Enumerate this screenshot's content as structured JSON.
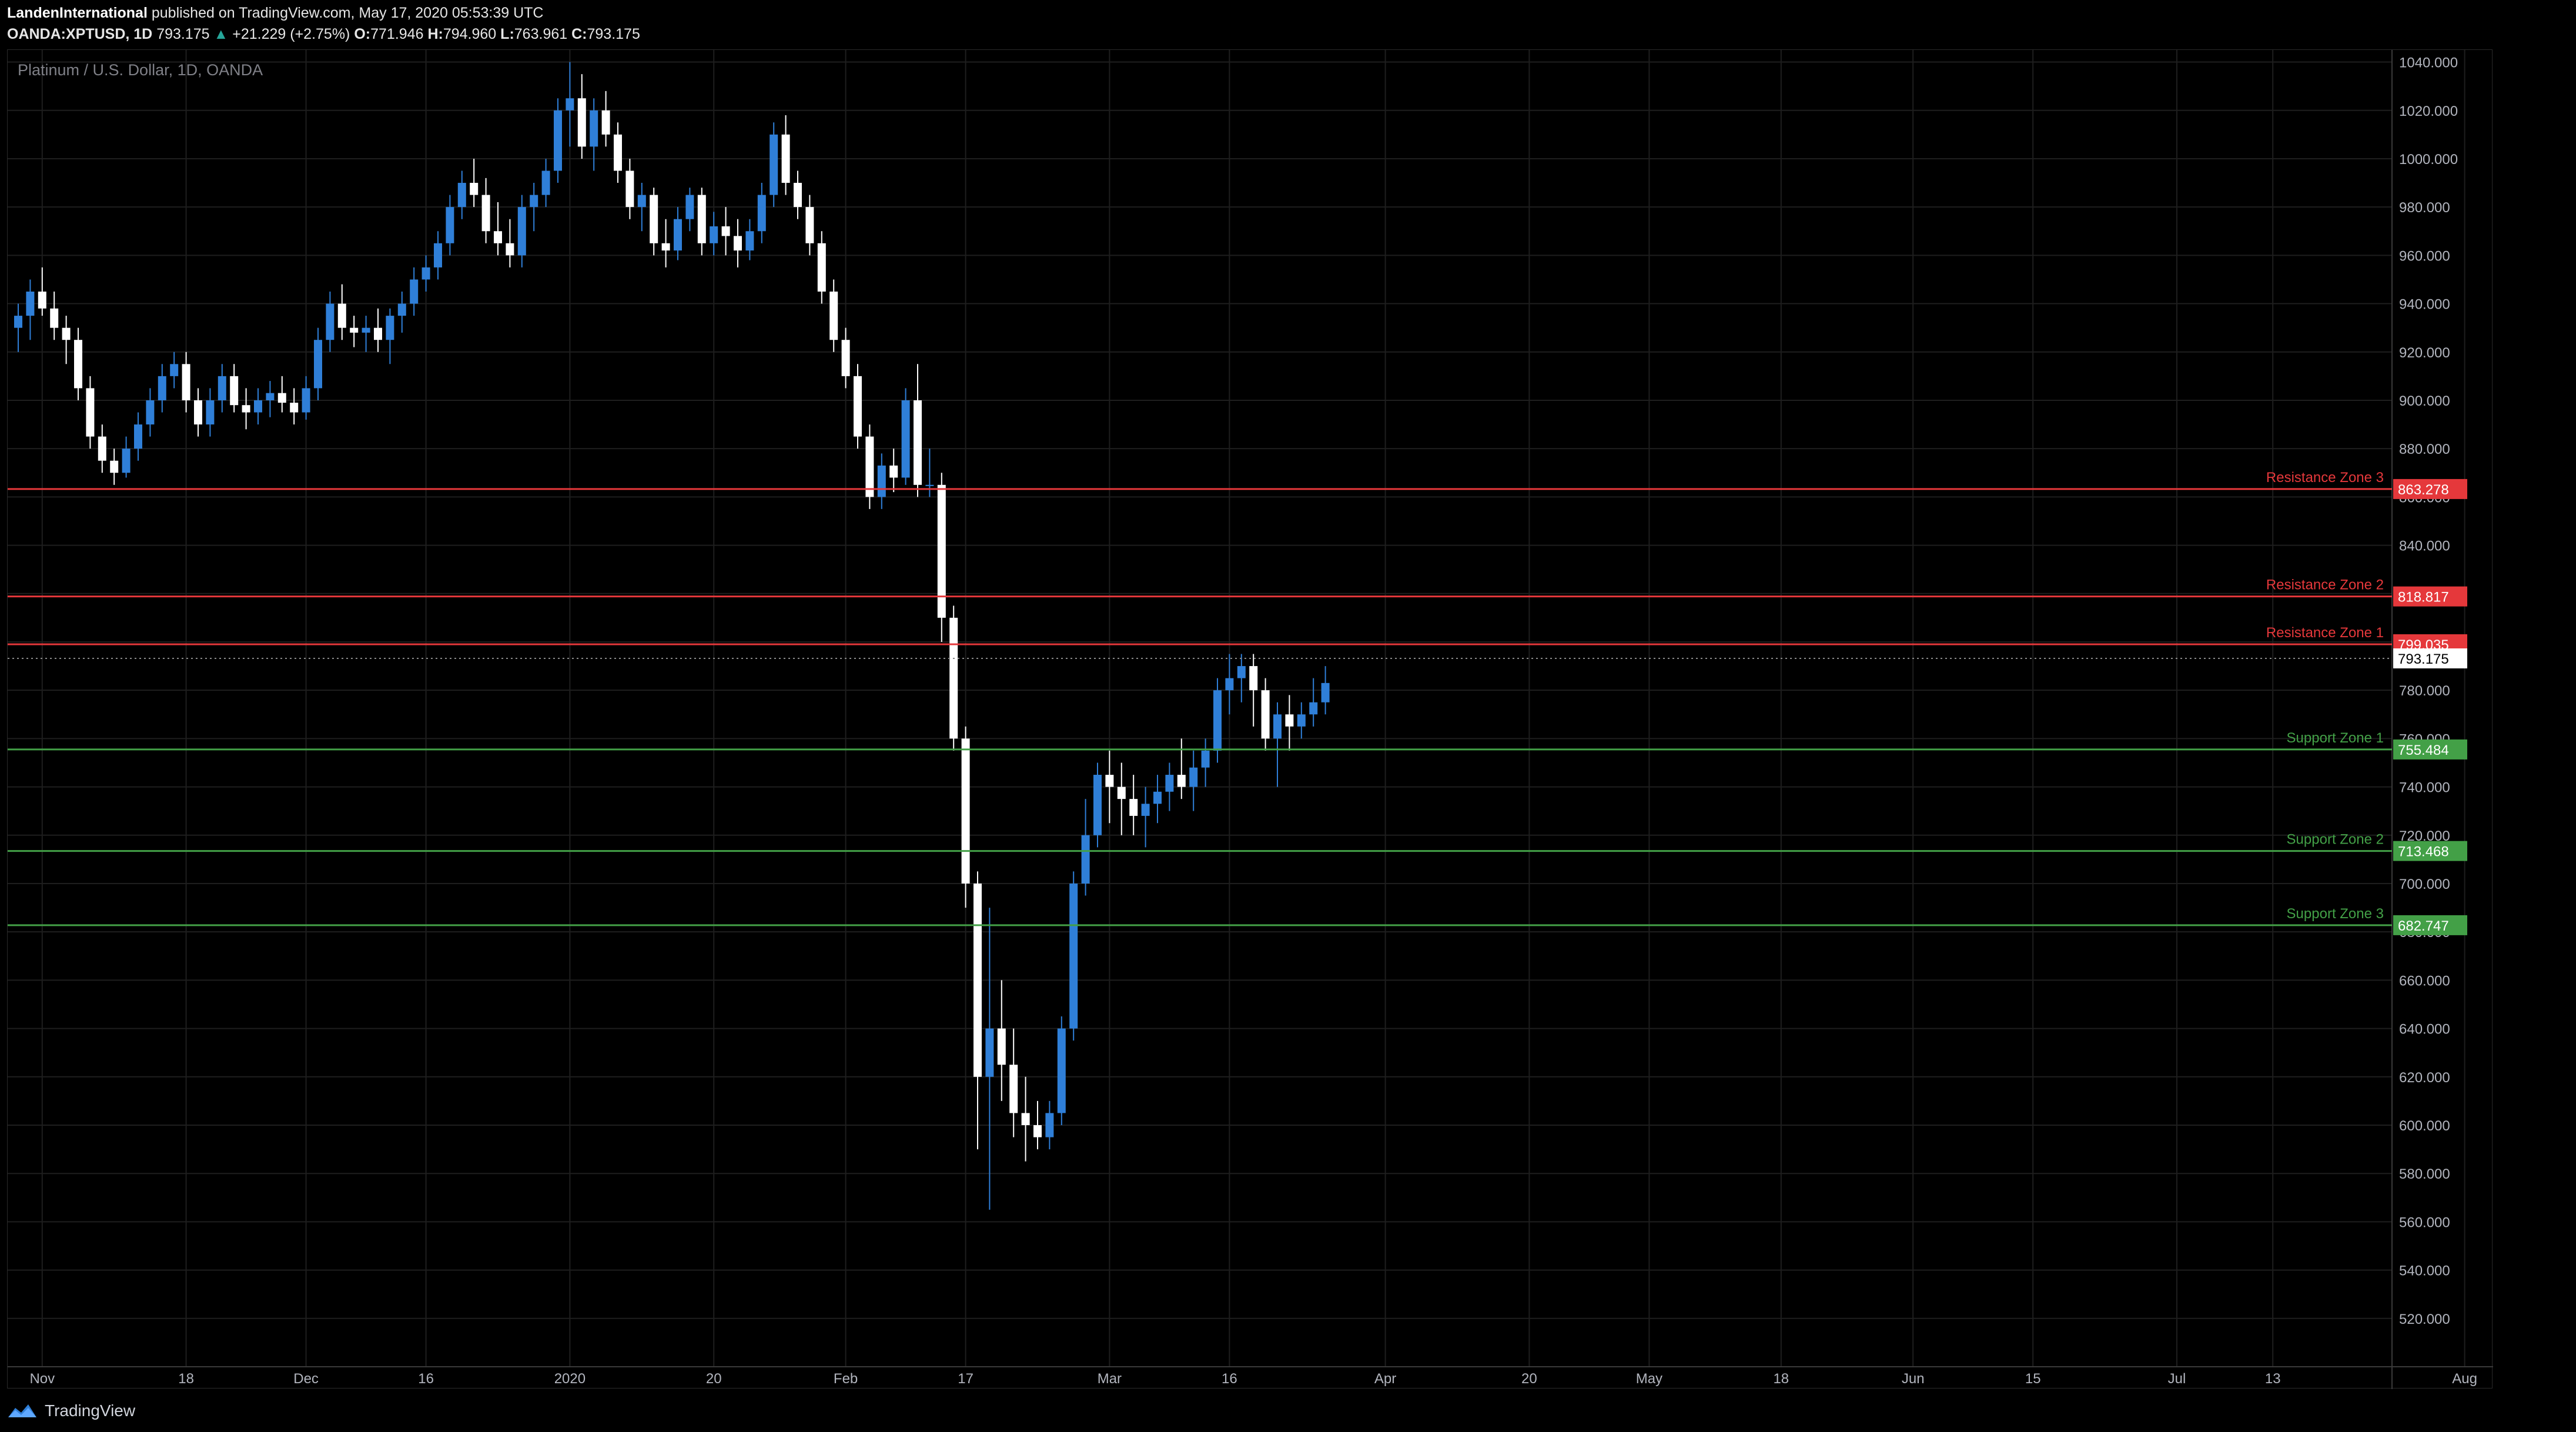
{
  "header": {
    "author": "LandenInternational",
    "published": "published on TradingView.com, May 17, 2020 05:53:39 UTC"
  },
  "symbol_line": {
    "ticker": "OANDA:XPTUSD, 1D",
    "last": "793.175",
    "arrow": "▲",
    "change": "+21.229 (+2.75%)",
    "o_label": "O:",
    "o": "771.946",
    "h_label": "H:",
    "h": "794.960",
    "l_label": "L:",
    "l": "763.961",
    "c_label": "C:",
    "c": "793.175"
  },
  "overlay_title": "Platinum / U.S. Dollar, 1D, OANDA",
  "footer": {
    "brand": "TradingView"
  },
  "colors": {
    "up": "#2f7fd8",
    "down": "#ffffff",
    "resistance": "#e5383b",
    "support": "#43a047",
    "grid": "#1e1e1e"
  },
  "chart_data": {
    "type": "candlestick",
    "ylim": [
      500,
      1045
    ],
    "y_ticks": [
      "1040.000",
      "1020.000",
      "1000.000",
      "980.000",
      "960.000",
      "940.000",
      "920.000",
      "900.000",
      "880.000",
      "860.000",
      "840.000",
      "820.000",
      "800.000",
      "780.000",
      "760.000",
      "740.000",
      "720.000",
      "700.000",
      "680.000",
      "660.000",
      "640.000",
      "620.000",
      "600.000",
      "580.000",
      "560.000",
      "540.000",
      "520.000"
    ],
    "y_tick_values": [
      1040,
      1020,
      1000,
      980,
      960,
      940,
      920,
      900,
      880,
      860,
      840,
      820,
      800,
      780,
      760,
      740,
      720,
      700,
      680,
      660,
      640,
      620,
      600,
      580,
      560,
      540,
      520
    ],
    "x_ticks": [
      {
        "label": "Nov",
        "i": 2
      },
      {
        "label": "18",
        "i": 14
      },
      {
        "label": "Dec",
        "i": 24
      },
      {
        "label": "16",
        "i": 34
      },
      {
        "label": "2020",
        "i": 46
      },
      {
        "label": "20",
        "i": 58
      },
      {
        "label": "Feb",
        "i": 69
      },
      {
        "label": "17",
        "i": 79
      },
      {
        "label": "Mar",
        "i": 91
      },
      {
        "label": "16",
        "i": 101
      },
      {
        "label": "Apr",
        "i": 114
      },
      {
        "label": "20",
        "i": 126
      },
      {
        "label": "May",
        "i": 136
      },
      {
        "label": "18",
        "i": 147
      },
      {
        "label": "Jun",
        "i": 158
      },
      {
        "label": "15",
        "i": 168
      },
      {
        "label": "Jul",
        "i": 180
      },
      {
        "label": "13",
        "i": 188
      },
      {
        "label": "Aug",
        "i": 204
      }
    ],
    "levels": [
      {
        "name": "Resistance Zone 3",
        "value": 863.278,
        "label": "863.278",
        "kind": "resistance"
      },
      {
        "name": "Resistance Zone 2",
        "value": 818.817,
        "label": "818.817",
        "kind": "resistance"
      },
      {
        "name": "Resistance Zone 1",
        "value": 799.035,
        "label": "799.035",
        "kind": "resistance"
      },
      {
        "name": "Support Zone 1",
        "value": 755.484,
        "label": "755.484",
        "kind": "support"
      },
      {
        "name": "Support Zone 2",
        "value": 713.468,
        "label": "713.468",
        "kind": "support"
      },
      {
        "name": "Support Zone 3",
        "value": 682.747,
        "label": "682.747",
        "kind": "support"
      }
    ],
    "last_price": {
      "value": 793.175,
      "label": "793.175"
    },
    "candles": [
      [
        930,
        940,
        920,
        935
      ],
      [
        935,
        950,
        925,
        945
      ],
      [
        945,
        955,
        935,
        938
      ],
      [
        938,
        945,
        925,
        930
      ],
      [
        930,
        935,
        915,
        925
      ],
      [
        925,
        930,
        900,
        905
      ],
      [
        905,
        910,
        880,
        885
      ],
      [
        885,
        890,
        870,
        875
      ],
      [
        875,
        880,
        865,
        870
      ],
      [
        870,
        885,
        868,
        880
      ],
      [
        880,
        895,
        875,
        890
      ],
      [
        890,
        905,
        885,
        900
      ],
      [
        900,
        915,
        895,
        910
      ],
      [
        910,
        920,
        905,
        915
      ],
      [
        915,
        920,
        895,
        900
      ],
      [
        900,
        905,
        885,
        890
      ],
      [
        890,
        905,
        885,
        900
      ],
      [
        900,
        915,
        895,
        910
      ],
      [
        910,
        915,
        895,
        898
      ],
      [
        898,
        905,
        888,
        895
      ],
      [
        895,
        905,
        890,
        900
      ],
      [
        900,
        908,
        893,
        903
      ],
      [
        903,
        910,
        895,
        899
      ],
      [
        899,
        905,
        890,
        895
      ],
      [
        895,
        910,
        892,
        905
      ],
      [
        905,
        930,
        900,
        925
      ],
      [
        925,
        945,
        920,
        940
      ],
      [
        940,
        948,
        925,
        930
      ],
      [
        930,
        935,
        922,
        928
      ],
      [
        928,
        935,
        920,
        930
      ],
      [
        930,
        938,
        920,
        925
      ],
      [
        925,
        938,
        915,
        935
      ],
      [
        935,
        945,
        928,
        940
      ],
      [
        940,
        955,
        935,
        950
      ],
      [
        950,
        960,
        945,
        955
      ],
      [
        955,
        970,
        950,
        965
      ],
      [
        965,
        985,
        960,
        980
      ],
      [
        980,
        995,
        975,
        990
      ],
      [
        990,
        1000,
        980,
        985
      ],
      [
        985,
        992,
        965,
        970
      ],
      [
        970,
        982,
        960,
        965
      ],
      [
        965,
        975,
        955,
        960
      ],
      [
        960,
        985,
        955,
        980
      ],
      [
        980,
        990,
        970,
        985
      ],
      [
        985,
        1000,
        980,
        995
      ],
      [
        995,
        1025,
        990,
        1020
      ],
      [
        1020,
        1040,
        1005,
        1025
      ],
      [
        1025,
        1035,
        1000,
        1005
      ],
      [
        1005,
        1025,
        995,
        1020
      ],
      [
        1020,
        1028,
        1005,
        1010
      ],
      [
        1010,
        1015,
        990,
        995
      ],
      [
        995,
        1000,
        975,
        980
      ],
      [
        980,
        990,
        970,
        985
      ],
      [
        985,
        988,
        960,
        965
      ],
      [
        965,
        975,
        955,
        962
      ],
      [
        962,
        980,
        958,
        975
      ],
      [
        975,
        988,
        970,
        985
      ],
      [
        985,
        988,
        960,
        965
      ],
      [
        965,
        978,
        960,
        972
      ],
      [
        972,
        980,
        960,
        968
      ],
      [
        968,
        975,
        955,
        962
      ],
      [
        962,
        975,
        958,
        970
      ],
      [
        970,
        990,
        965,
        985
      ],
      [
        985,
        1015,
        980,
        1010
      ],
      [
        1010,
        1018,
        985,
        990
      ],
      [
        990,
        995,
        975,
        980
      ],
      [
        980,
        985,
        960,
        965
      ],
      [
        965,
        970,
        940,
        945
      ],
      [
        945,
        950,
        920,
        925
      ],
      [
        925,
        930,
        905,
        910
      ],
      [
        910,
        915,
        880,
        885
      ],
      [
        885,
        890,
        855,
        860
      ],
      [
        860,
        878,
        855,
        873
      ],
      [
        873,
        880,
        862,
        868
      ],
      [
        868,
        905,
        865,
        900
      ],
      [
        900,
        915,
        860,
        865
      ],
      [
        865,
        880,
        860,
        865
      ],
      [
        865,
        870,
        800,
        810
      ],
      [
        810,
        815,
        755,
        760
      ],
      [
        760,
        765,
        690,
        700
      ],
      [
        700,
        705,
        590,
        620
      ],
      [
        620,
        690,
        565,
        640
      ],
      [
        640,
        660,
        610,
        625
      ],
      [
        625,
        640,
        595,
        605
      ],
      [
        605,
        620,
        585,
        600
      ],
      [
        600,
        610,
        590,
        595
      ],
      [
        595,
        610,
        590,
        605
      ],
      [
        605,
        645,
        600,
        640
      ],
      [
        640,
        705,
        635,
        700
      ],
      [
        700,
        735,
        695,
        720
      ],
      [
        720,
        750,
        715,
        745
      ],
      [
        745,
        755,
        725,
        740
      ],
      [
        740,
        750,
        720,
        735
      ],
      [
        735,
        745,
        720,
        728
      ],
      [
        728,
        740,
        715,
        733
      ],
      [
        733,
        745,
        725,
        738
      ],
      [
        738,
        750,
        730,
        745
      ],
      [
        745,
        760,
        735,
        740
      ],
      [
        740,
        755,
        730,
        748
      ],
      [
        748,
        760,
        740,
        755
      ],
      [
        755,
        785,
        750,
        780
      ],
      [
        780,
        795,
        770,
        785
      ],
      [
        785,
        795,
        775,
        790
      ],
      [
        790,
        795,
        765,
        780
      ],
      [
        780,
        785,
        755,
        760
      ],
      [
        760,
        775,
        740,
        770
      ],
      [
        770,
        778,
        755,
        765
      ],
      [
        765,
        775,
        760,
        770
      ],
      [
        770,
        785,
        765,
        775
      ],
      [
        775,
        790,
        770,
        783
      ]
    ]
  }
}
